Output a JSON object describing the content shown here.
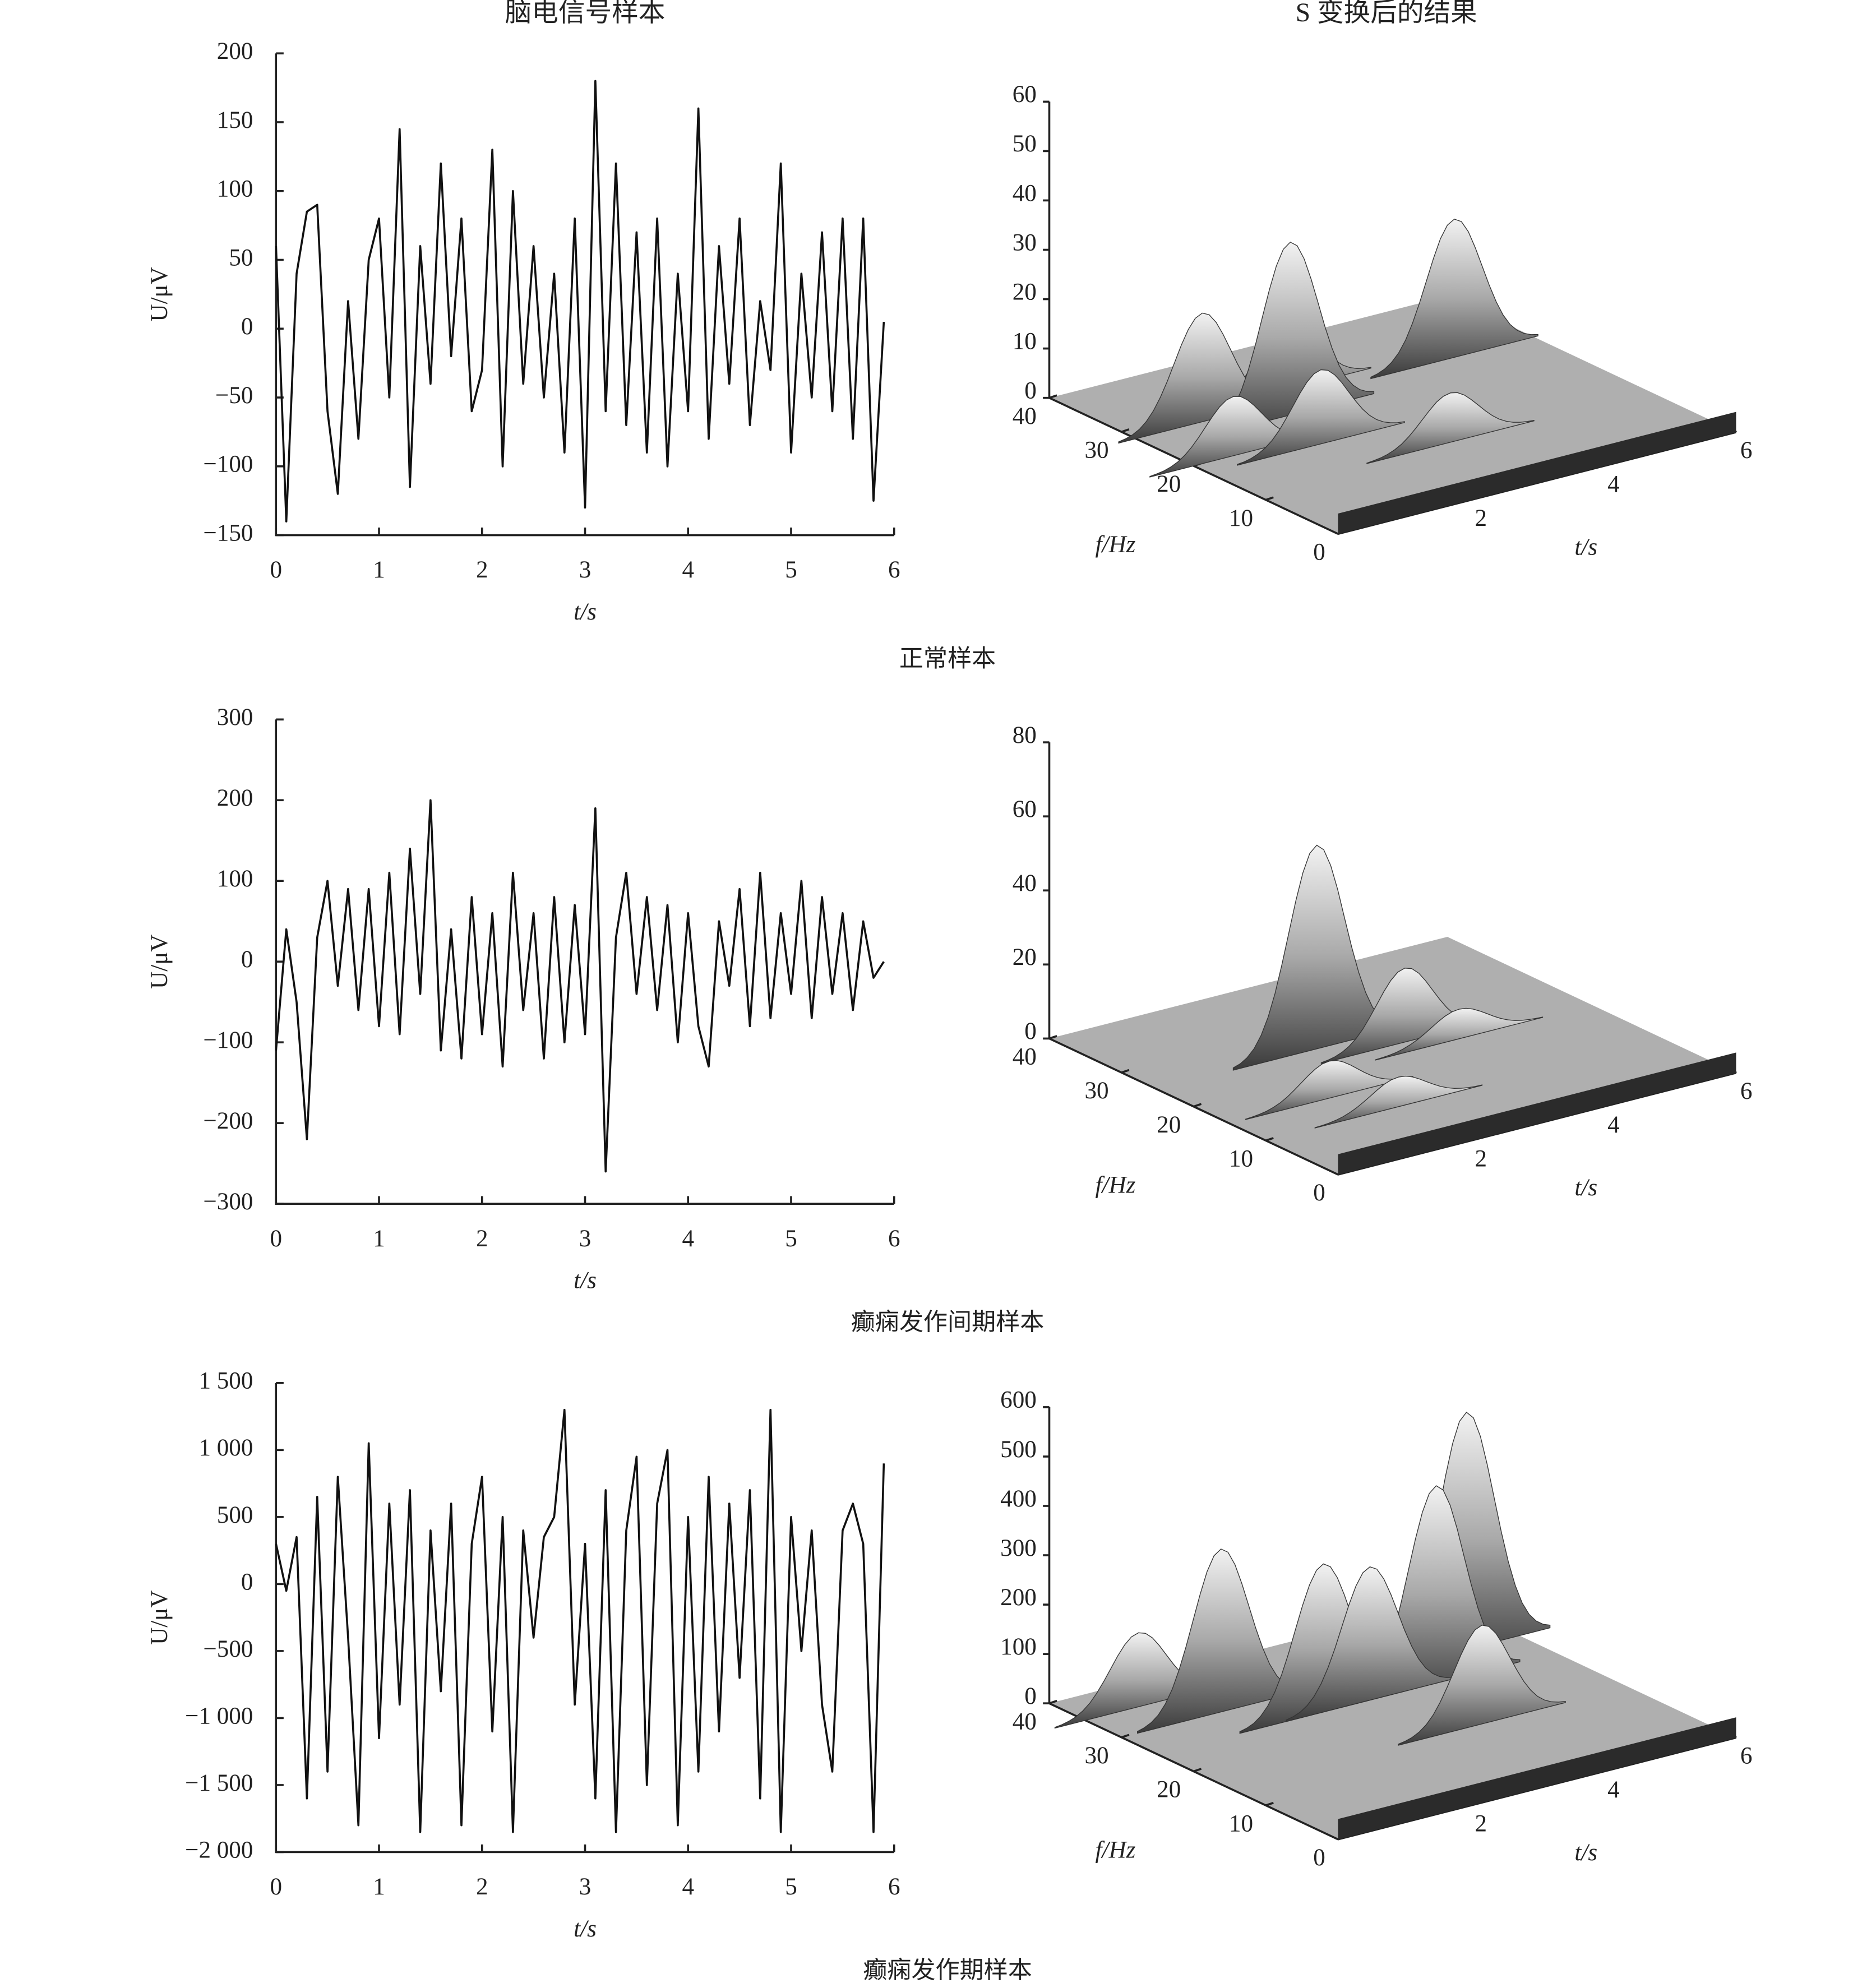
{
  "captions": [
    "正常样本",
    "癫痫发作间期样本",
    "癫痫发作期样本"
  ],
  "chart_data": [
    {
      "type": "line",
      "title": "脑电信号样本",
      "xlabel": "t/s",
      "ylabel": "U/μV",
      "color": "#111111",
      "x": [
        0,
        0.1,
        0.2,
        0.3,
        0.4,
        0.5,
        0.6,
        0.7,
        0.8,
        0.9,
        1,
        1.1,
        1.2,
        1.3,
        1.4,
        1.5,
        1.6,
        1.7,
        1.8,
        1.9,
        2,
        2.1,
        2.2,
        2.3,
        2.4,
        2.5,
        2.6,
        2.7,
        2.8,
        2.9,
        3,
        3.1,
        3.2,
        3.3,
        3.4,
        3.5,
        3.6,
        3.7,
        3.8,
        3.9,
        4,
        4.1,
        4.2,
        4.3,
        4.4,
        4.5,
        4.6,
        4.7,
        4.8,
        4.9,
        5,
        5.1,
        5.2,
        5.3,
        5.4,
        5.5,
        5.6,
        5.7,
        5.8,
        5.9
      ],
      "values": [
        60,
        -140,
        40,
        85,
        90,
        -60,
        -120,
        20,
        -80,
        50,
        80,
        -50,
        145,
        -115,
        60,
        -40,
        120,
        -20,
        80,
        -60,
        -30,
        130,
        -100,
        100,
        -40,
        60,
        -50,
        40,
        -90,
        80,
        -130,
        180,
        -60,
        120,
        -70,
        70,
        -90,
        80,
        -100,
        40,
        -60,
        160,
        -80,
        60,
        -40,
        80,
        -70,
        20,
        -30,
        120,
        -90,
        40,
        -50,
        70,
        -60,
        80,
        -80,
        80,
        -125,
        5
      ],
      "xlim": [
        0,
        6
      ],
      "xticks": [
        0,
        1,
        2,
        3,
        4,
        5,
        6
      ],
      "ylim": [
        -150,
        200
      ],
      "yticks": [
        {
          "value": -150,
          "label": "−150"
        },
        {
          "value": -100,
          "label": "−100"
        },
        {
          "value": -50,
          "label": "−50"
        },
        0,
        50,
        100,
        150,
        200
      ]
    },
    {
      "type": "surface3d",
      "title": "S 变换后的结果",
      "xlabel": "t/s",
      "ylabel": "f/Hz",
      "x": [
        2.0,
        1.0,
        0.6,
        4.8,
        1.7,
        3.0,
        2.5
      ],
      "y": [
        25,
        28,
        20,
        28,
        18,
        12,
        30
      ],
      "values": [
        35,
        22,
        12,
        28,
        15,
        10,
        15
      ],
      "xlim": [
        0,
        6
      ],
      "xticks": [
        2,
        4,
        6
      ],
      "ylim": [
        0,
        40
      ],
      "yticks": [
        0,
        10,
        20,
        30,
        40
      ],
      "zlim": [
        0,
        60
      ],
      "zticks": [
        0,
        10,
        20,
        30,
        40,
        50,
        60
      ]
    },
    {
      "type": "line",
      "xlabel": "t/s",
      "ylabel": "U/μV",
      "color": "#111111",
      "x": [
        0,
        0.1,
        0.2,
        0.3,
        0.4,
        0.5,
        0.6,
        0.7,
        0.8,
        0.9,
        1,
        1.1,
        1.2,
        1.3,
        1.4,
        1.5,
        1.6,
        1.7,
        1.8,
        1.9,
        2,
        2.1,
        2.2,
        2.3,
        2.4,
        2.5,
        2.6,
        2.7,
        2.8,
        2.9,
        3,
        3.1,
        3.2,
        3.3,
        3.4,
        3.5,
        3.6,
        3.7,
        3.8,
        3.9,
        4,
        4.1,
        4.2,
        4.3,
        4.4,
        4.5,
        4.6,
        4.7,
        4.8,
        4.9,
        5,
        5.1,
        5.2,
        5.3,
        5.4,
        5.5,
        5.6,
        5.7,
        5.8,
        5.9
      ],
      "values": [
        -110,
        40,
        -50,
        -220,
        30,
        100,
        -30,
        90,
        -60,
        90,
        -80,
        110,
        -90,
        140,
        -40,
        200,
        -110,
        40,
        -120,
        80,
        -90,
        60,
        -130,
        110,
        -60,
        60,
        -120,
        80,
        -100,
        70,
        -90,
        190,
        -260,
        30,
        110,
        -40,
        80,
        -60,
        70,
        -100,
        60,
        -80,
        -130,
        50,
        -30,
        90,
        -80,
        110,
        -70,
        60,
        -40,
        100,
        -70,
        80,
        -40,
        60,
        -60,
        50,
        -20,
        0
      ],
      "xlim": [
        0,
        6
      ],
      "xticks": [
        0,
        1,
        2,
        3,
        4,
        5,
        6
      ],
      "ylim": [
        -300,
        300
      ],
      "yticks": [
        {
          "value": -300,
          "label": "−300"
        },
        {
          "value": -200,
          "label": "−200"
        },
        {
          "value": -100,
          "label": "−100"
        },
        0,
        100,
        200,
        300
      ]
    },
    {
      "type": "surface3d",
      "xlabel": "t/s",
      "ylabel": "f/Hz",
      "x": [
        2.4,
        3.4,
        1.5,
        2.0,
        4.0
      ],
      "y": [
        25,
        22,
        15,
        10,
        20
      ],
      "values": [
        55,
        20,
        10,
        8,
        8
      ],
      "xlim": [
        0,
        6
      ],
      "xticks": [
        2,
        4,
        6
      ],
      "ylim": [
        0,
        40
      ],
      "yticks": [
        0,
        10,
        20,
        30,
        40
      ],
      "zlim": [
        0,
        80
      ],
      "zticks": [
        0,
        20,
        40,
        60,
        80
      ]
    },
    {
      "type": "line",
      "xlabel": "t/s",
      "ylabel": "U/μV",
      "color": "#111111",
      "x": [
        0,
        0.1,
        0.2,
        0.3,
        0.4,
        0.5,
        0.6,
        0.7,
        0.8,
        0.9,
        1,
        1.1,
        1.2,
        1.3,
        1.4,
        1.5,
        1.6,
        1.7,
        1.8,
        1.9,
        2,
        2.1,
        2.2,
        2.3,
        2.4,
        2.5,
        2.6,
        2.7,
        2.8,
        2.9,
        3,
        3.1,
        3.2,
        3.3,
        3.4,
        3.5,
        3.6,
        3.7,
        3.8,
        3.9,
        4,
        4.1,
        4.2,
        4.3,
        4.4,
        4.5,
        4.6,
        4.7,
        4.8,
        4.9,
        5,
        5.1,
        5.2,
        5.3,
        5.4,
        5.5,
        5.6,
        5.7,
        5.8,
        5.9
      ],
      "values": [
        300,
        -50,
        350,
        -1600,
        650,
        -1400,
        800,
        -400,
        -1800,
        1050,
        -1150,
        600,
        -900,
        700,
        -1850,
        400,
        -800,
        600,
        -1800,
        300,
        800,
        -1100,
        500,
        -1850,
        400,
        -400,
        350,
        500,
        1300,
        -900,
        300,
        -1600,
        700,
        -1850,
        400,
        950,
        -1500,
        600,
        1000,
        -1800,
        500,
        -1400,
        800,
        -1100,
        600,
        -700,
        700,
        -1600,
        1300,
        -1850,
        500,
        -500,
        400,
        -900,
        -1400,
        400,
        600,
        300,
        -1850,
        900
      ],
      "xlim": [
        0,
        6
      ],
      "xticks": [
        0,
        1,
        2,
        3,
        4,
        5,
        6
      ],
      "ylim": [
        -2000,
        1500
      ],
      "yticks": [
        {
          "value": -2000,
          "label": "−2 000"
        },
        {
          "value": -1500,
          "label": "−1 500"
        },
        {
          "value": -1000,
          "label": "−1 000"
        },
        {
          "value": -500,
          "label": "−500"
        },
        0,
        500,
        {
          "value": 1000,
          "label": "1 000"
        },
        {
          "value": 1500,
          "label": "1 500"
        }
      ]
    },
    {
      "type": "surface3d",
      "xlabel": "t/s",
      "ylabel": "f/Hz",
      "x": [
        5.2,
        4.2,
        1.5,
        2.5,
        3.2,
        0.8,
        3.8
      ],
      "y": [
        30,
        25,
        30,
        25,
        25,
        35,
        15
      ],
      "values": [
        480,
        400,
        330,
        300,
        270,
        150,
        200
      ],
      "xlim": [
        0,
        6
      ],
      "xticks": [
        2,
        4,
        6
      ],
      "ylim": [
        0,
        40
      ],
      "yticks": [
        0,
        10,
        20,
        30,
        40
      ],
      "zlim": [
        0,
        600
      ],
      "zticks": [
        0,
        100,
        200,
        300,
        400,
        500,
        600
      ]
    }
  ]
}
